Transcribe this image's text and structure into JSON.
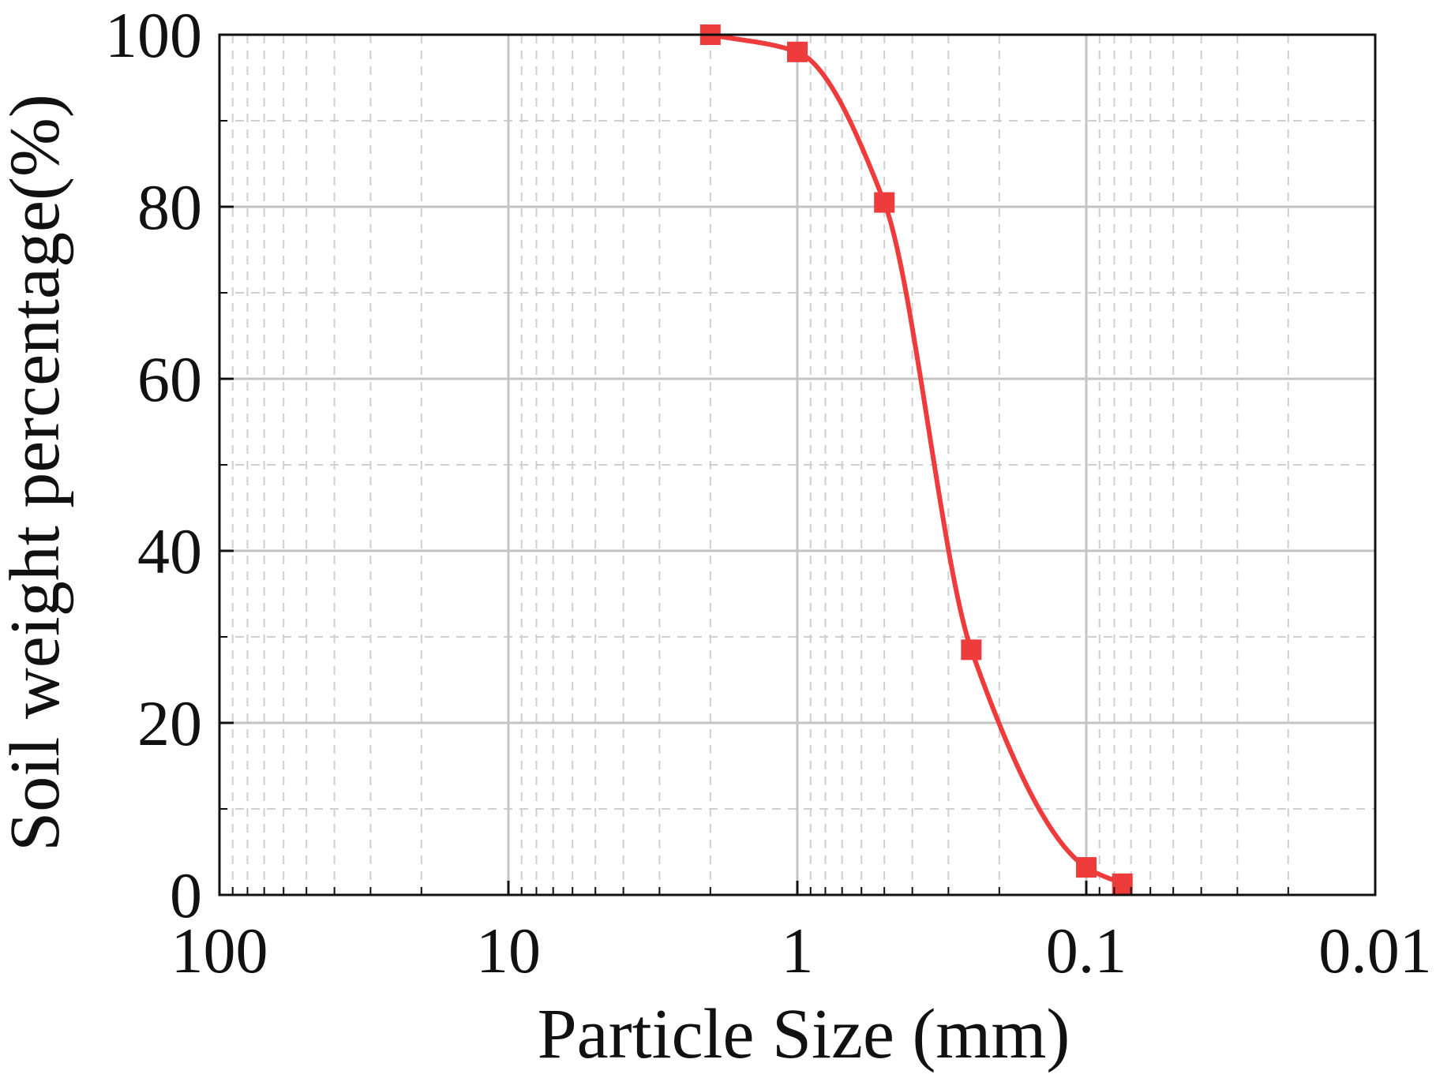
{
  "chart_data": {
    "type": "line",
    "title": "",
    "xlabel": "Particle Size (mm)",
    "ylabel": "Soil weight percentage(%)",
    "x_scale": "log",
    "x_reversed": true,
    "xlim": [
      100,
      0.01
    ],
    "ylim": [
      0,
      100
    ],
    "x_ticks": [
      {
        "value": 100,
        "label": "100"
      },
      {
        "value": 10,
        "label": "10"
      },
      {
        "value": 1,
        "label": "1"
      },
      {
        "value": 0.1,
        "label": "0.1"
      },
      {
        "value": 0.01,
        "label": "0.01"
      }
    ],
    "y_ticks": [
      {
        "value": 0,
        "label": "0"
      },
      {
        "value": 20,
        "label": "20"
      },
      {
        "value": 40,
        "label": "40"
      },
      {
        "value": 60,
        "label": "60"
      },
      {
        "value": 80,
        "label": "80"
      },
      {
        "value": 100,
        "label": "100"
      }
    ],
    "grid": true,
    "series": [
      {
        "color": "#ee3b3b",
        "marker": "square",
        "x": [
          2,
          1,
          0.5,
          0.25,
          0.1,
          0.075
        ],
        "y": [
          100,
          98,
          80.5,
          28.5,
          3.2,
          1.3
        ]
      }
    ]
  }
}
